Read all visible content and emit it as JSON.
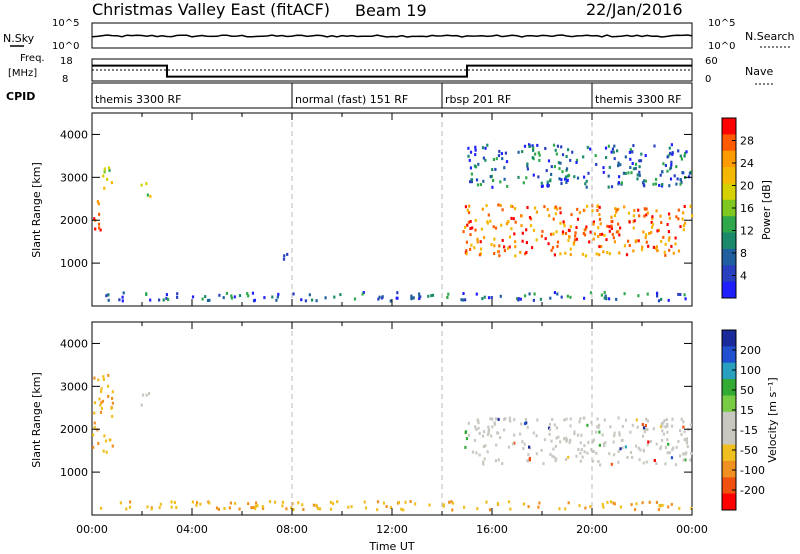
{
  "header": {
    "title": "Christmas Valley East (fitACF)",
    "beam": "Beam 19",
    "date": "22/Jan/2016"
  },
  "top_panel": {
    "left_label": "N.Sky",
    "left_ticks": [
      "10^5",
      "10^0"
    ],
    "right_label": "N.Search",
    "right_ticks": [
      "10^5",
      "10^0"
    ]
  },
  "freq_panel": {
    "left_label_1": "Freq.",
    "left_label_2": "[MHz]",
    "left_ticks": [
      "18",
      "8"
    ],
    "right_label": "Nave",
    "right_ticks": [
      "60",
      "0"
    ],
    "cpid_label": "CPID",
    "cpid_segments": [
      {
        "label": "themis 3300 RF",
        "start_hour": 0
      },
      {
        "label": "normal (fast) 151 RF",
        "start_hour": 8
      },
      {
        "label": "rbsp 201 RF",
        "start_hour": 14
      },
      {
        "label": "themis 3300 RF",
        "start_hour": 20
      }
    ]
  },
  "x_axis": {
    "label": "Time UT",
    "ticks": [
      "00:00",
      "04:00",
      "08:00",
      "12:00",
      "16:00",
      "20:00",
      "00:00"
    ],
    "range_hours": [
      0,
      24
    ]
  },
  "power_panel": {
    "ylabel": "Slant Range [km]",
    "yticks": [
      "4000",
      "3000",
      "2000",
      "1000"
    ],
    "cbar_label": "Power [dB]",
    "cbar_ticks": [
      "28",
      "24",
      "20",
      "16",
      "12",
      "8",
      "4"
    ],
    "cbar_colors": [
      "#ff0000",
      "#ff5a00",
      "#ff9a00",
      "#f5b800",
      "#d6d000",
      "#7ec820",
      "#2ea84a",
      "#1a8a6a",
      "#1f5fa0",
      "#2840c0",
      "#2020ff"
    ]
  },
  "velocity_panel": {
    "ylabel": "Slant Range [km]",
    "yticks": [
      "4000",
      "3000",
      "2000",
      "1000"
    ],
    "cbar_label": "Velocity [m s⁻¹]",
    "cbar_ticks": [
      "200",
      "100",
      "50",
      "15",
      "-15",
      "-50",
      "-100",
      "-200"
    ],
    "cbar_colors": [
      "#1a2a9a",
      "#2050d0",
      "#2aa0c0",
      "#33aa33",
      "#77cc44",
      "#c8c8c0",
      "#c8c8c0",
      "#f0c020",
      "#f09020",
      "#f05010",
      "#ff0000"
    ]
  },
  "chart_data": {
    "type": "heatmap",
    "x_unit": "hours UT",
    "y_unit": "km",
    "xlim": [
      0,
      24
    ],
    "ylim": [
      0,
      4500
    ],
    "frequency_mhz_step": [
      [
        0,
        15
      ],
      [
        3,
        10
      ],
      [
        15,
        15
      ],
      [
        24,
        15
      ]
    ],
    "power_regions": [
      {
        "t0": 0.0,
        "t1": 0.35,
        "r0": 1500,
        "r1": 2500,
        "level": "high"
      },
      {
        "t0": 0.4,
        "t1": 0.9,
        "r0": 2700,
        "r1": 3300,
        "level": "mid"
      },
      {
        "t0": 1.9,
        "t1": 2.3,
        "r0": 2500,
        "r1": 2900,
        "level": "mid"
      },
      {
        "t0": 7.5,
        "t1": 8.0,
        "r0": 1100,
        "r1": 1300,
        "level": "low"
      },
      {
        "t0": 14.8,
        "t1": 24.0,
        "r0": 1200,
        "r1": 2400,
        "level": "high"
      },
      {
        "t0": 15.0,
        "t1": 24.0,
        "r0": 2800,
        "r1": 3800,
        "level": "low"
      },
      {
        "t0": 0.2,
        "t1": 24.0,
        "r0": 150,
        "r1": 350,
        "level": "low"
      }
    ],
    "velocity_regions": [
      {
        "t0": 0.0,
        "t1": 0.8,
        "r0": 1500,
        "r1": 3300,
        "v": -30
      },
      {
        "t0": 1.9,
        "t1": 2.3,
        "r0": 2500,
        "r1": 2900,
        "v": 0
      },
      {
        "t0": 15.0,
        "t1": 24.0,
        "r0": 1200,
        "r1": 2300,
        "v": 0
      },
      {
        "t0": 14.8,
        "t1": 15.1,
        "r0": 1500,
        "r1": 2100,
        "v": 40
      },
      {
        "t0": 0.2,
        "t1": 24.0,
        "r0": 150,
        "r1": 350,
        "v": -20
      }
    ]
  }
}
